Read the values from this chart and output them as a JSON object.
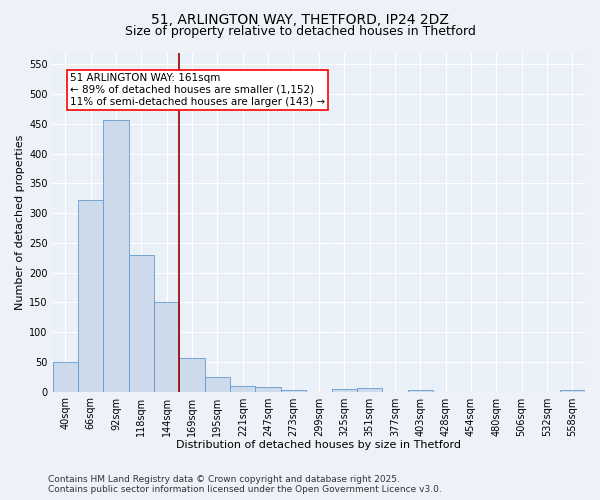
{
  "title1": "51, ARLINGTON WAY, THETFORD, IP24 2DZ",
  "title2": "Size of property relative to detached houses in Thetford",
  "xlabel": "Distribution of detached houses by size in Thetford",
  "ylabel": "Number of detached properties",
  "bar_color": "#ccdaeb",
  "bar_edge_color": "#6699cc",
  "categories": [
    "40sqm",
    "66sqm",
    "92sqm",
    "118sqm",
    "144sqm",
    "169sqm",
    "195sqm",
    "221sqm",
    "247sqm",
    "273sqm",
    "299sqm",
    "325sqm",
    "351sqm",
    "377sqm",
    "403sqm",
    "428sqm",
    "454sqm",
    "480sqm",
    "506sqm",
    "532sqm",
    "558sqm"
  ],
  "values": [
    50,
    322,
    456,
    230,
    150,
    56,
    25,
    10,
    8,
    3,
    0,
    5,
    6,
    0,
    3,
    0,
    0,
    0,
    0,
    0,
    3
  ],
  "ylim": [
    0,
    570
  ],
  "yticks": [
    0,
    50,
    100,
    150,
    200,
    250,
    300,
    350,
    400,
    450,
    500,
    550
  ],
  "vline_x": 4.5,
  "annotation_title": "51 ARLINGTON WAY: 161sqm",
  "annotation_line1": "← 89% of detached houses are smaller (1,152)",
  "annotation_line2": "11% of semi-detached houses are larger (143) →",
  "footnote1": "Contains HM Land Registry data © Crown copyright and database right 2025.",
  "footnote2": "Contains public sector information licensed under the Open Government Licence v3.0.",
  "background_color": "#eef2f8",
  "plot_bg_color": "#eaf0f8",
  "grid_color": "#ffffff",
  "title_fontsize": 10,
  "subtitle_fontsize": 9,
  "axis_label_fontsize": 8,
  "tick_fontsize": 7,
  "annotation_fontsize": 7.5,
  "footnote_fontsize": 6.5
}
